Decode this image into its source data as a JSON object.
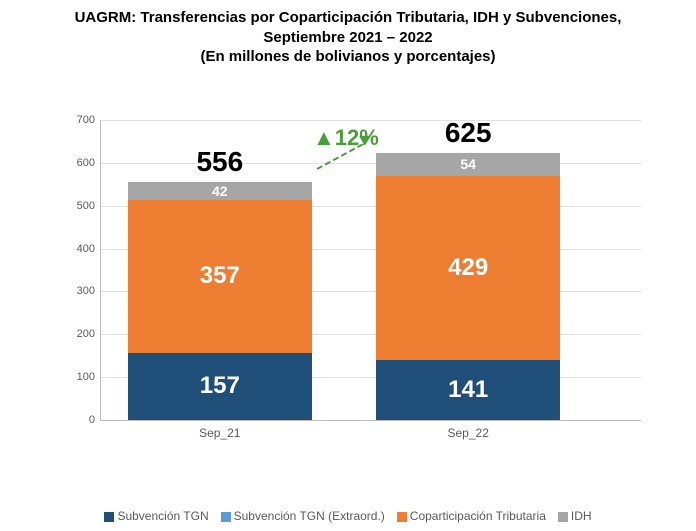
{
  "title": {
    "line1": "UAGRM: Transferencias por Coparticipación Tributaria, IDH y Subvenciones,",
    "line2": "Septiembre 2021 – 2022",
    "line3": "(En millones de bolivianos y porcentajes)"
  },
  "chart": {
    "type": "stacked-bar",
    "ylim": [
      0,
      700
    ],
    "ytick_step": 100,
    "yticks": [
      0,
      100,
      200,
      300,
      400,
      500,
      600,
      700
    ],
    "grid_color": "#e0e0e0",
    "axis_color": "#bbbbbb",
    "background_color": "#ffffff",
    "tick_fontsize": 11,
    "categories": [
      "Sep_21",
      "Sep_22"
    ],
    "series": [
      {
        "name": "Subvención TGN",
        "color": "#1f4e79"
      },
      {
        "name": "Subvención TGN (Extraord.)",
        "color": "#5b9bd5"
      },
      {
        "name": "Coparticipación Tributaria",
        "color": "#ed7d31"
      },
      {
        "name": "IDH",
        "color": "#a6a6a6"
      }
    ],
    "bars": [
      {
        "category": "Sep_21",
        "total": 556,
        "segments": [
          {
            "series": "Subvención TGN",
            "value": 157,
            "label": "157",
            "color": "#1f4e79",
            "text_color": "#ffffff"
          },
          {
            "series": "Coparticipación Tributaria",
            "value": 357,
            "label": "357",
            "color": "#ed7d31",
            "text_color": "#ffffff"
          },
          {
            "series": "IDH",
            "value": 42,
            "label": "42",
            "color": "#a6a6a6",
            "text_color": "#ffffff"
          }
        ]
      },
      {
        "category": "Sep_22",
        "total": 625,
        "segments": [
          {
            "series": "Subvención TGN",
            "value": 141,
            "label": "141",
            "color": "#1f4e79",
            "text_color": "#ffffff"
          },
          {
            "series": "Coparticipación Tributaria",
            "value": 429,
            "label": "429",
            "color": "#ed7d31",
            "text_color": "#ffffff"
          },
          {
            "series": "IDH",
            "value": 54,
            "label": "54",
            "color": "#a6a6a6",
            "text_color": "#ffffff"
          }
        ]
      }
    ],
    "growth": {
      "label": "▲12%",
      "color": "#4a9e3a",
      "fontsize": 22
    },
    "total_fontsize": 28,
    "segment_fontsize": 24,
    "bar_width_ratio": 0.34,
    "bar_positions": [
      0.22,
      0.68
    ]
  }
}
